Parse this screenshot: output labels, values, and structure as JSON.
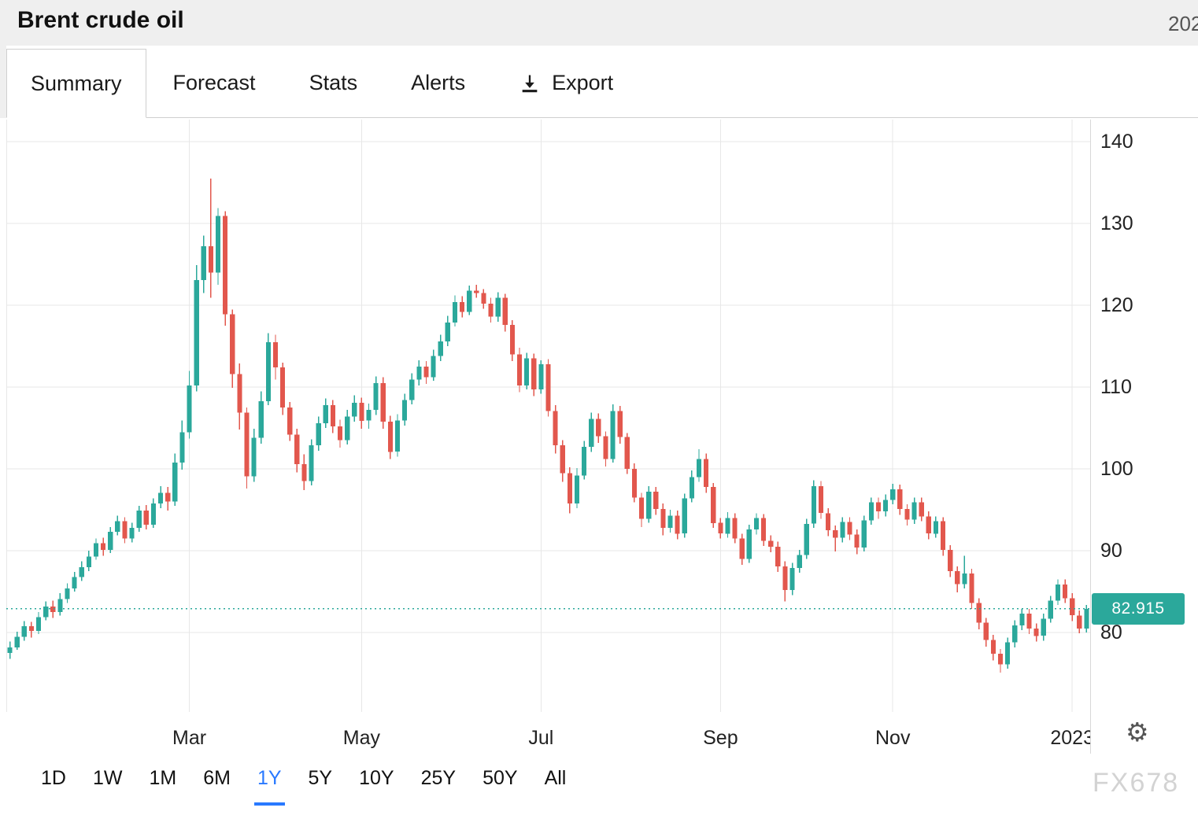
{
  "header": {
    "title": "Brent crude oil",
    "right_text": "202"
  },
  "tabs": {
    "items": [
      {
        "label": "Summary",
        "active": true
      },
      {
        "label": "Forecast",
        "active": false
      },
      {
        "label": "Stats",
        "active": false
      },
      {
        "label": "Alerts",
        "active": false
      },
      {
        "label": "Export",
        "active": false,
        "icon": "download-icon"
      }
    ]
  },
  "range_selector": {
    "active": "1Y",
    "items": [
      "1D",
      "1W",
      "1M",
      "6M",
      "1Y",
      "5Y",
      "10Y",
      "25Y",
      "50Y",
      "All"
    ]
  },
  "price_label": {
    "value": "82.915"
  },
  "watermark": "FX678",
  "colors": {
    "up": "#2BA89B",
    "down": "#E2574D",
    "accent": "#2979FF",
    "grid": "#E7E7E7",
    "axis_line": "#D8D8D8",
    "axis_text": "#222222",
    "header_bg": "#EFEFEF",
    "price_label_text": "#FFFFFF"
  },
  "chart_data": {
    "type": "candlestick",
    "title": "Brent crude oil",
    "timeframe": "1Y",
    "last_price": 82.915,
    "y_axis": {
      "ticks": [
        140,
        130,
        120,
        110,
        100,
        90,
        80
      ],
      "max": 142.7,
      "min": 70.3
    },
    "x_axis": {
      "ticks": [
        {
          "label": "Mar",
          "index": 25
        },
        {
          "label": "May",
          "index": 49
        },
        {
          "label": "Jul",
          "index": 74
        },
        {
          "label": "Sep",
          "index": 99
        },
        {
          "label": "Nov",
          "index": 123
        },
        {
          "label": "2023",
          "index": 148
        }
      ]
    },
    "candles": [
      [
        77.5,
        78.9,
        76.8,
        78.2
      ],
      [
        78.2,
        80.1,
        77.9,
        79.5
      ],
      [
        79.5,
        81.4,
        79.0,
        80.8
      ],
      [
        80.8,
        81.3,
        79.4,
        80.2
      ],
      [
        80.2,
        82.5,
        79.8,
        81.9
      ],
      [
        81.9,
        83.8,
        81.5,
        83.2
      ],
      [
        83.2,
        83.9,
        81.8,
        82.5
      ],
      [
        82.5,
        84.8,
        82.1,
        84.1
      ],
      [
        84.1,
        86.0,
        83.6,
        85.4
      ],
      [
        85.4,
        87.4,
        85.0,
        86.8
      ],
      [
        86.8,
        88.7,
        86.3,
        88.0
      ],
      [
        88.0,
        90.0,
        87.5,
        89.3
      ],
      [
        89.3,
        91.5,
        88.9,
        90.9
      ],
      [
        90.9,
        91.6,
        89.4,
        90.1
      ],
      [
        90.1,
        92.9,
        89.7,
        92.3
      ],
      [
        92.3,
        94.3,
        91.9,
        93.6
      ],
      [
        93.6,
        94.1,
        90.9,
        91.5
      ],
      [
        91.5,
        93.4,
        91.0,
        92.8
      ],
      [
        92.8,
        95.5,
        92.3,
        94.9
      ],
      [
        94.9,
        95.6,
        92.6,
        93.2
      ],
      [
        93.2,
        96.4,
        92.8,
        95.8
      ],
      [
        95.8,
        97.9,
        95.2,
        97.1
      ],
      [
        97.1,
        97.8,
        94.9,
        96.0
      ],
      [
        96.0,
        101.9,
        95.5,
        100.8
      ],
      [
        100.8,
        105.9,
        99.9,
        104.5
      ],
      [
        104.5,
        112.0,
        103.7,
        110.2
      ],
      [
        110.2,
        124.9,
        109.5,
        123.1
      ],
      [
        123.1,
        128.5,
        121.5,
        127.2
      ],
      [
        127.2,
        135.5,
        120.9,
        124.0
      ],
      [
        124.0,
        131.9,
        122.5,
        130.9
      ],
      [
        130.9,
        131.5,
        117.5,
        118.9
      ],
      [
        118.9,
        119.5,
        109.9,
        111.6
      ],
      [
        111.6,
        112.9,
        104.8,
        106.9
      ],
      [
        106.9,
        107.5,
        97.6,
        99.1
      ],
      [
        99.1,
        104.9,
        98.4,
        103.8
      ],
      [
        103.8,
        109.5,
        103.1,
        108.3
      ],
      [
        108.3,
        116.6,
        107.8,
        115.5
      ],
      [
        115.5,
        116.4,
        110.9,
        112.4
      ],
      [
        112.4,
        113.0,
        106.6,
        107.5
      ],
      [
        107.5,
        108.2,
        103.4,
        104.2
      ],
      [
        104.2,
        104.9,
        99.6,
        100.6
      ],
      [
        100.6,
        101.8,
        97.4,
        98.5
      ],
      [
        98.5,
        103.6,
        98.0,
        102.9
      ],
      [
        102.9,
        106.4,
        102.2,
        105.6
      ],
      [
        105.6,
        108.6,
        105.0,
        107.8
      ],
      [
        107.8,
        108.4,
        104.4,
        105.2
      ],
      [
        105.2,
        106.0,
        102.6,
        103.5
      ],
      [
        103.5,
        107.2,
        103.0,
        106.4
      ],
      [
        106.4,
        109.0,
        105.8,
        108.1
      ],
      [
        108.1,
        108.7,
        104.9,
        105.9
      ],
      [
        105.9,
        108.0,
        104.9,
        107.2
      ],
      [
        107.2,
        111.3,
        106.6,
        110.5
      ],
      [
        110.5,
        111.2,
        104.9,
        105.8
      ],
      [
        105.8,
        106.5,
        101.2,
        102.1
      ],
      [
        102.1,
        106.7,
        101.5,
        105.9
      ],
      [
        105.9,
        109.2,
        105.3,
        108.4
      ],
      [
        108.4,
        111.7,
        107.9,
        110.9
      ],
      [
        110.9,
        113.3,
        110.2,
        112.5
      ],
      [
        112.5,
        113.2,
        110.4,
        111.2
      ],
      [
        111.2,
        114.6,
        110.8,
        113.8
      ],
      [
        113.8,
        116.4,
        113.2,
        115.6
      ],
      [
        115.6,
        118.7,
        115.0,
        117.9
      ],
      [
        117.9,
        121.2,
        117.4,
        120.4
      ],
      [
        120.4,
        121.1,
        118.5,
        119.2
      ],
      [
        119.2,
        122.4,
        118.8,
        121.8
      ],
      [
        121.8,
        122.5,
        120.9,
        121.5
      ],
      [
        121.5,
        122.0,
        119.6,
        120.2
      ],
      [
        120.2,
        120.9,
        117.9,
        118.6
      ],
      [
        118.6,
        121.6,
        118.0,
        120.9
      ],
      [
        120.9,
        121.4,
        116.8,
        117.6
      ],
      [
        117.6,
        118.2,
        113.2,
        114.0
      ],
      [
        114.0,
        114.8,
        109.4,
        110.2
      ],
      [
        110.2,
        114.2,
        109.7,
        113.5
      ],
      [
        113.5,
        114.1,
        108.9,
        109.7
      ],
      [
        109.7,
        113.3,
        109.2,
        112.8
      ],
      [
        112.8,
        113.4,
        106.4,
        107.1
      ],
      [
        107.1,
        107.8,
        101.9,
        102.9
      ],
      [
        102.9,
        103.5,
        98.4,
        99.5
      ],
      [
        99.5,
        100.2,
        94.6,
        95.8
      ],
      [
        95.8,
        100.1,
        95.2,
        99.2
      ],
      [
        99.2,
        103.4,
        98.7,
        102.7
      ],
      [
        102.7,
        106.9,
        102.1,
        106.1
      ],
      [
        106.1,
        106.8,
        103.2,
        104.0
      ],
      [
        104.0,
        104.6,
        100.3,
        101.2
      ],
      [
        101.2,
        107.9,
        100.8,
        107.1
      ],
      [
        107.1,
        107.7,
        103.1,
        103.9
      ],
      [
        103.9,
        104.4,
        99.4,
        100.0
      ],
      [
        100.0,
        100.7,
        95.9,
        96.5
      ],
      [
        96.5,
        97.1,
        92.9,
        93.9
      ],
      [
        93.9,
        97.9,
        93.4,
        97.2
      ],
      [
        97.2,
        97.8,
        94.4,
        95.1
      ],
      [
        95.1,
        95.8,
        91.9,
        92.8
      ],
      [
        92.8,
        95.0,
        92.2,
        94.3
      ],
      [
        94.3,
        94.9,
        91.4,
        92.1
      ],
      [
        92.1,
        97.0,
        91.6,
        96.4
      ],
      [
        96.4,
        99.8,
        95.9,
        99.0
      ],
      [
        99.0,
        102.4,
        98.4,
        101.2
      ],
      [
        101.2,
        101.9,
        97.1,
        97.8
      ],
      [
        97.8,
        98.3,
        92.8,
        93.4
      ],
      [
        93.4,
        94.0,
        91.5,
        92.1
      ],
      [
        92.1,
        94.7,
        91.6,
        94.0
      ],
      [
        94.0,
        94.6,
        90.9,
        91.5
      ],
      [
        91.5,
        92.1,
        88.3,
        89.0
      ],
      [
        89.0,
        93.2,
        88.5,
        92.6
      ],
      [
        92.6,
        94.6,
        92.0,
        94.0
      ],
      [
        94.0,
        94.5,
        90.6,
        91.2
      ],
      [
        91.2,
        91.9,
        89.8,
        90.5
      ],
      [
        90.5,
        91.1,
        87.4,
        88.1
      ],
      [
        88.1,
        88.7,
        83.8,
        85.2
      ],
      [
        85.2,
        88.5,
        84.6,
        87.9
      ],
      [
        87.9,
        90.1,
        87.3,
        89.5
      ],
      [
        89.5,
        93.9,
        89.0,
        93.3
      ],
      [
        93.3,
        98.6,
        92.8,
        97.9
      ],
      [
        97.9,
        98.5,
        93.9,
        94.6
      ],
      [
        94.6,
        95.2,
        91.8,
        92.5
      ],
      [
        92.5,
        93.1,
        89.9,
        91.6
      ],
      [
        91.6,
        94.1,
        91.0,
        93.5
      ],
      [
        93.5,
        94.1,
        91.3,
        92.0
      ],
      [
        92.0,
        92.6,
        89.6,
        90.4
      ],
      [
        90.4,
        94.3,
        89.9,
        93.7
      ],
      [
        93.7,
        96.5,
        93.2,
        95.9
      ],
      [
        95.9,
        96.5,
        93.9,
        94.8
      ],
      [
        94.8,
        96.9,
        94.2,
        96.2
      ],
      [
        96.2,
        98.2,
        95.7,
        97.5
      ],
      [
        97.5,
        98.1,
        94.4,
        95.1
      ],
      [
        95.1,
        95.7,
        93.1,
        93.8
      ],
      [
        93.8,
        96.5,
        93.3,
        95.9
      ],
      [
        95.9,
        96.5,
        93.6,
        94.2
      ],
      [
        94.2,
        94.8,
        91.4,
        92.1
      ],
      [
        92.1,
        94.2,
        91.6,
        93.6
      ],
      [
        93.6,
        94.1,
        89.4,
        90.1
      ],
      [
        90.1,
        90.7,
        86.8,
        87.5
      ],
      [
        87.5,
        88.1,
        84.9,
        85.9
      ],
      [
        85.9,
        89.4,
        85.4,
        87.2
      ],
      [
        87.2,
        87.8,
        82.9,
        83.6
      ],
      [
        83.6,
        84.2,
        80.4,
        81.2
      ],
      [
        81.2,
        81.8,
        78.3,
        79.1
      ],
      [
        79.1,
        79.7,
        76.6,
        77.4
      ],
      [
        77.4,
        78.0,
        75.1,
        76.1
      ],
      [
        76.1,
        79.4,
        75.6,
        78.8
      ],
      [
        78.8,
        81.5,
        78.2,
        80.9
      ],
      [
        80.9,
        82.9,
        80.3,
        82.3
      ],
      [
        82.3,
        82.9,
        79.8,
        80.5
      ],
      [
        80.5,
        81.1,
        78.9,
        79.6
      ],
      [
        79.6,
        82.3,
        79.0,
        81.7
      ],
      [
        81.7,
        84.5,
        81.2,
        83.9
      ],
      [
        83.9,
        86.5,
        83.4,
        85.9
      ],
      [
        85.9,
        86.5,
        83.6,
        84.2
      ],
      [
        84.2,
        84.8,
        81.4,
        82.1
      ],
      [
        82.1,
        82.7,
        79.9,
        80.5
      ],
      [
        80.5,
        83.4,
        80.0,
        82.9
      ]
    ]
  }
}
